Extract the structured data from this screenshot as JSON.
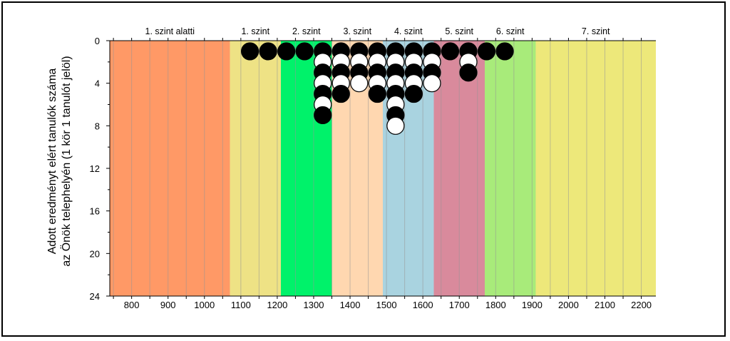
{
  "chart_data": {
    "type": "scatter",
    "title": "",
    "ylabel_lines": [
      "Adott eredményt elért tanulók száma",
      "az Önök telephelyén (1 kör 1 tanulót jelöl)"
    ],
    "xlabel": "",
    "xlim": [
      740,
      2240
    ],
    "ylim": [
      0,
      24
    ],
    "y_inverted": true,
    "x_ticks": [
      800,
      900,
      1000,
      1100,
      1200,
      1300,
      1400,
      1500,
      1600,
      1700,
      1800,
      1900,
      2000,
      2100,
      2200
    ],
    "y_ticks": [
      0,
      4,
      8,
      12,
      16,
      20,
      24
    ],
    "grid": "vertical every 50",
    "bands": [
      {
        "label": "1. szint alatti",
        "from": 740,
        "to": 1070,
        "color": "#FF9966"
      },
      {
        "label": "1. szint",
        "from": 1070,
        "to": 1210,
        "color": "#EEE285"
      },
      {
        "label": "2. szint",
        "from": 1210,
        "to": 1350,
        "color": "#00F26A"
      },
      {
        "label": "3. szint",
        "from": 1350,
        "to": 1490,
        "color": "#FFD7B0"
      },
      {
        "label": "4. szint",
        "from": 1490,
        "to": 1630,
        "color": "#A9D3E0"
      },
      {
        "label": "5. szint",
        "from": 1630,
        "to": 1770,
        "color": "#D98A9C"
      },
      {
        "label": "6. szint",
        "from": 1770,
        "to": 1910,
        "color": "#A8EB7A"
      },
      {
        "label": "7. szint",
        "from": 1910,
        "to": 2240,
        "color": "#EDE87A"
      }
    ],
    "columns": [
      {
        "x": 1125,
        "dots": [
          "black"
        ]
      },
      {
        "x": 1175,
        "dots": [
          "black"
        ]
      },
      {
        "x": 1225,
        "dots": [
          "black"
        ]
      },
      {
        "x": 1275,
        "dots": [
          "black"
        ]
      },
      {
        "x": 1325,
        "dots": [
          "black",
          "white",
          "black",
          "white",
          "black",
          "white",
          "black"
        ]
      },
      {
        "x": 1375,
        "dots": [
          "black",
          "white",
          "black",
          "white",
          "black"
        ]
      },
      {
        "x": 1425,
        "dots": [
          "black",
          "white",
          "black",
          "white"
        ]
      },
      {
        "x": 1475,
        "dots": [
          "black",
          "white",
          "black",
          "white",
          "black"
        ]
      },
      {
        "x": 1525,
        "dots": [
          "black",
          "white",
          "black",
          "white",
          "black",
          "white",
          "black",
          "white"
        ]
      },
      {
        "x": 1575,
        "dots": [
          "black",
          "white",
          "black",
          "white",
          "black"
        ]
      },
      {
        "x": 1625,
        "dots": [
          "black",
          "white",
          "black",
          "white"
        ]
      },
      {
        "x": 1675,
        "dots": [
          "black"
        ]
      },
      {
        "x": 1725,
        "dots": [
          "black",
          "white",
          "black"
        ]
      },
      {
        "x": 1775,
        "dots": [
          "black"
        ]
      },
      {
        "x": 1825,
        "dots": [
          "black"
        ]
      }
    ],
    "colors": {
      "black": "#000000",
      "white": "#ffffff"
    }
  }
}
